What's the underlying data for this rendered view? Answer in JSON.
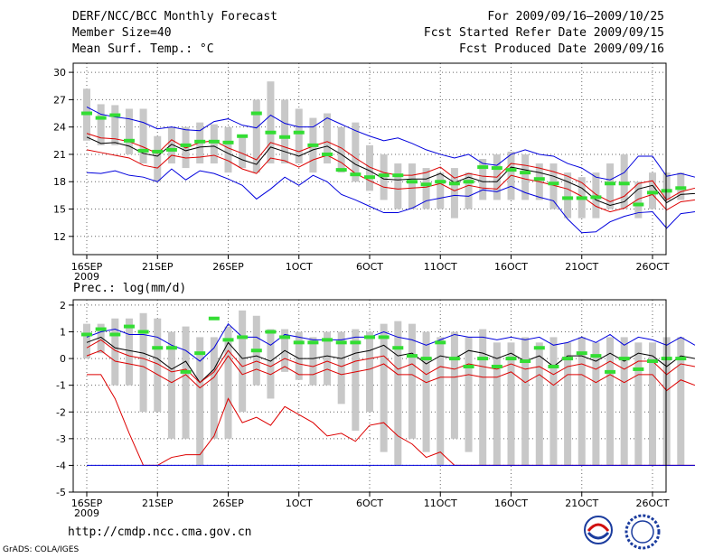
{
  "header": {
    "title": "DERF/NCC/BCC Monthly Forecast",
    "member_size": "Member Size=40",
    "variable": "Mean Surf. Temp.: °C",
    "period": "For 2009/09/16–2009/10/25",
    "started": "Fcst Started Refer Date 2009/09/15",
    "produced": "Fcst Produced Date 2009/09/16"
  },
  "footer": {
    "url": "http://cmdp.ncc.cma.gov.cn",
    "grads": "GrADS: COLA/IGES",
    "logo_left": "BCC",
    "logo_right": "NCC"
  },
  "colors": {
    "box": "#c8c8c8",
    "mean": "#000000",
    "spread": "#dd0000",
    "range": "#0000dd",
    "median": "#33dd33",
    "grid": "#666666"
  },
  "chart_data": [
    {
      "type": "line",
      "title": "Mean Surf. Temp.: °C",
      "days": 40,
      "xticks": [
        {
          "day": 0,
          "label": "16SEP",
          "sub": "2009"
        },
        {
          "day": 5,
          "label": "21SEP"
        },
        {
          "day": 10,
          "label": "26SEP"
        },
        {
          "day": 15,
          "label": "1OCT"
        },
        {
          "day": 20,
          "label": "6OCT"
        },
        {
          "day": 25,
          "label": "11OCT"
        },
        {
          "day": 30,
          "label": "16OCT"
        },
        {
          "day": 35,
          "label": "21OCT"
        },
        {
          "day": 40,
          "label": "26OCT"
        }
      ],
      "ylim": [
        10,
        31
      ],
      "yticks": [
        12,
        15,
        18,
        21,
        24,
        27,
        30
      ],
      "boxes": [
        [
          22.5,
          28.2
        ],
        [
          22,
          26.5
        ],
        [
          22,
          26.4
        ],
        [
          21,
          26
        ],
        [
          20,
          26
        ],
        [
          18,
          23
        ],
        [
          20,
          24
        ],
        [
          19.5,
          24
        ],
        [
          20,
          24.5
        ],
        [
          20,
          24.3
        ],
        [
          19,
          24
        ],
        [
          19.5,
          23
        ],
        [
          19,
          27
        ],
        [
          20,
          29
        ],
        [
          20,
          27
        ],
        [
          20,
          26
        ],
        [
          19,
          25
        ],
        [
          20,
          25.5
        ],
        [
          19,
          24
        ],
        [
          18,
          24.5
        ],
        [
          17,
          22
        ],
        [
          16,
          21
        ],
        [
          15,
          20
        ],
        [
          15,
          20
        ],
        [
          15,
          19.5
        ],
        [
          15,
          19
        ],
        [
          14,
          19.5
        ],
        [
          15,
          19
        ],
        [
          16,
          20.5
        ],
        [
          16,
          21
        ],
        [
          16,
          21.3
        ],
        [
          16,
          21
        ],
        [
          16,
          20
        ],
        [
          15,
          20
        ],
        [
          14,
          19
        ],
        [
          14,
          18.5
        ],
        [
          14,
          19
        ],
        [
          15,
          20
        ],
        [
          15,
          21
        ],
        [
          14,
          18
        ],
        [
          15,
          19
        ],
        [
          16,
          19
        ],
        [
          16,
          19
        ]
      ],
      "series": [
        {
          "name": "max",
          "color": "range",
          "values": [
            26.2,
            25.4,
            25.1,
            24.9,
            24.5,
            23.8,
            24.0,
            23.7,
            23.6,
            24.6,
            24.9,
            24.2,
            23.9,
            25.3,
            24.4,
            24.0,
            24.0,
            25.0,
            24.3,
            23.6,
            23.0,
            22.5,
            22.8,
            22.2,
            21.5,
            21.0,
            20.6,
            21.0,
            20.0,
            19.8,
            21.0,
            21.5,
            21.0,
            20.8,
            20.0,
            19.5,
            18.5,
            18.2,
            19.0,
            20.8,
            20.8,
            18.6,
            18.9,
            18.5
          ]
        },
        {
          "name": "spread_upper",
          "color": "spread",
          "values": [
            23.3,
            22.8,
            22.7,
            22.4,
            21.8,
            21.1,
            22.6,
            21.7,
            22.3,
            22.5,
            21.7,
            21.1,
            20.4,
            22.3,
            21.8,
            21.3,
            21.9,
            22.4,
            21.7,
            20.6,
            19.6,
            19.0,
            18.7,
            18.7,
            19.0,
            19.6,
            18.4,
            18.9,
            18.6,
            18.5,
            20.0,
            19.8,
            19.5,
            19.1,
            18.6,
            17.9,
            16.6,
            15.8,
            16.4,
            17.8,
            18.1,
            16.0,
            16.9,
            17.3
          ]
        },
        {
          "name": "mean",
          "color": "mean",
          "values": [
            22.9,
            22.2,
            22.3,
            21.9,
            21.1,
            20.8,
            22.1,
            21.4,
            21.8,
            21.9,
            21.1,
            20.4,
            19.9,
            21.8,
            21.3,
            20.8,
            21.5,
            21.9,
            21.0,
            19.9,
            19.2,
            18.3,
            18.2,
            18.3,
            18.3,
            18.9,
            17.9,
            18.5,
            18.0,
            18.0,
            19.6,
            19.3,
            19.0,
            18.6,
            18.0,
            17.3,
            16.0,
            15.4,
            15.8,
            17.2,
            17.6,
            15.7,
            16.6,
            16.7
          ]
        },
        {
          "name": "spread_lower",
          "color": "spread",
          "values": [
            21.5,
            21.2,
            20.9,
            20.6,
            19.8,
            19.5,
            20.9,
            20.6,
            20.7,
            20.9,
            20.3,
            19.4,
            18.9,
            20.6,
            20.3,
            19.6,
            20.4,
            20.9,
            20.1,
            18.9,
            18.1,
            17.4,
            17.2,
            17.3,
            17.4,
            17.8,
            17.0,
            17.6,
            17.3,
            17.2,
            18.7,
            18.3,
            18.0,
            17.6,
            17.2,
            16.4,
            15.3,
            14.7,
            15.1,
            16.1,
            16.6,
            14.9,
            15.8,
            16.0
          ]
        },
        {
          "name": "min",
          "color": "range",
          "values": [
            19.0,
            18.9,
            19.2,
            18.7,
            18.5,
            18.0,
            19.4,
            18.2,
            19.2,
            18.9,
            18.3,
            17.6,
            16.1,
            17.2,
            18.5,
            17.6,
            18.7,
            18.0,
            16.6,
            16.0,
            15.3,
            14.6,
            14.6,
            15.1,
            15.9,
            16.2,
            16.5,
            16.4,
            17.1,
            16.9,
            17.5,
            16.8,
            16.3,
            15.9,
            13.9,
            12.4,
            12.5,
            13.6,
            14.2,
            14.6,
            14.7,
            12.9,
            14.5,
            14.7
          ]
        }
      ],
      "medians": [
        25.5,
        25.0,
        25.3,
        22.5,
        21.4,
        21.3,
        21.5,
        22.0,
        22.4,
        22.4,
        22.3,
        23.0,
        25.5,
        23.4,
        22.9,
        23.4,
        22.0,
        21.0,
        19.3,
        18.8,
        18.5,
        18.7,
        18.7,
        18.0,
        17.7,
        18.0,
        17.8,
        18.0,
        19.6,
        19.5,
        19.3,
        19.0,
        18.3,
        17.8,
        16.2,
        16.2,
        16.3,
        17.8,
        17.8,
        15.5,
        16.8,
        17.0,
        17.3
      ]
    },
    {
      "type": "line",
      "title": "Prec.: log(mm/d)",
      "days": 40,
      "xticks": [
        {
          "day": 0,
          "label": "16SEP",
          "sub": "2009"
        },
        {
          "day": 5,
          "label": "21SEP"
        },
        {
          "day": 10,
          "label": "26SEP"
        },
        {
          "day": 15,
          "label": "1OCT"
        },
        {
          "day": 20,
          "label": "6OCT"
        },
        {
          "day": 25,
          "label": "11OCT"
        },
        {
          "day": 30,
          "label": "16OCT"
        },
        {
          "day": 35,
          "label": "21OCT"
        },
        {
          "day": 40,
          "label": "26OCT"
        }
      ],
      "ylim": [
        -5,
        2.2
      ],
      "yticks": [
        -5,
        -4,
        -3,
        -2,
        -1,
        0,
        1,
        2
      ],
      "boxes": [
        [
          0,
          1.3
        ],
        [
          0.2,
          1.3
        ],
        [
          -1,
          1.5
        ],
        [
          -1,
          1.5
        ],
        [
          -2,
          1.7
        ],
        [
          -2,
          1.5
        ],
        [
          -3,
          1
        ],
        [
          -3,
          1.2
        ],
        [
          -4,
          0.8
        ],
        [
          -3,
          0.8
        ],
        [
          -3,
          1.2
        ],
        [
          -2,
          1.8
        ],
        [
          -1,
          1.6
        ],
        [
          -1.5,
          1.1
        ],
        [
          -0.5,
          1.1
        ],
        [
          -0.8,
          1
        ],
        [
          -1,
          0.8
        ],
        [
          -1,
          1
        ],
        [
          -1.7,
          1
        ],
        [
          -2.7,
          1.1
        ],
        [
          -2,
          1
        ],
        [
          -3.5,
          1.3
        ],
        [
          -4,
          1.4
        ],
        [
          -3,
          1.3
        ],
        [
          -3.5,
          1
        ],
        [
          -4,
          0.8
        ],
        [
          -3,
          1
        ],
        [
          -3.5,
          0.8
        ],
        [
          -4,
          1.1
        ],
        [
          -4,
          0.6
        ],
        [
          -4,
          0.6
        ],
        [
          -4,
          0.8
        ],
        [
          -4,
          0.6
        ],
        [
          -4,
          0.8
        ],
        [
          -4,
          0.6
        ],
        [
          -4,
          0.8
        ],
        [
          -4,
          0.6
        ],
        [
          -4,
          0.8
        ],
        [
          -4,
          0.8
        ],
        [
          -4,
          0.6
        ],
        [
          -4,
          0.6
        ],
        [
          -4,
          0.8
        ],
        [
          -4,
          0.8
        ]
      ],
      "series": [
        {
          "name": "max",
          "color": "range",
          "values": [
            0.8,
            1.0,
            1.1,
            0.9,
            0.9,
            0.8,
            0.5,
            0.3,
            -0.1,
            0.4,
            1.3,
            0.8,
            0.8,
            0.5,
            0.9,
            0.8,
            0.7,
            0.7,
            0.7,
            0.8,
            0.8,
            1.0,
            0.8,
            0.7,
            0.5,
            0.7,
            0.9,
            0.8,
            0.8,
            0.7,
            0.8,
            0.7,
            0.8,
            0.5,
            0.6,
            0.8,
            0.6,
            0.9,
            0.5,
            0.8,
            0.7,
            0.5,
            0.8,
            0.5
          ]
        },
        {
          "name": "mean",
          "color": "mean",
          "values": [
            0.6,
            0.8,
            0.4,
            0.3,
            0.2,
            0.0,
            -0.4,
            -0.1,
            -0.9,
            -0.4,
            0.6,
            0.0,
            0.1,
            -0.1,
            0.3,
            0.0,
            0.0,
            0.1,
            0.0,
            0.2,
            0.3,
            0.5,
            0.1,
            0.2,
            -0.2,
            0.1,
            0.0,
            0.3,
            0.2,
            0.0,
            0.2,
            -0.1,
            0.1,
            -0.3,
            0.1,
            0.1,
            -0.1,
            0.2,
            -0.1,
            0.2,
            0.1,
            -0.3,
            0.1,
            0.0
          ]
        },
        {
          "name": "spread_upper",
          "color": "spread",
          "values": [
            0.4,
            0.7,
            0.3,
            0.1,
            0.0,
            -0.2,
            -0.5,
            -0.4,
            -0.9,
            -0.5,
            0.3,
            -0.3,
            -0.1,
            -0.3,
            0.0,
            -0.2,
            -0.3,
            -0.1,
            -0.3,
            -0.1,
            0.0,
            0.1,
            -0.4,
            -0.2,
            -0.6,
            -0.3,
            -0.4,
            -0.2,
            -0.3,
            -0.4,
            -0.2,
            -0.4,
            -0.3,
            -0.6,
            -0.3,
            -0.2,
            -0.4,
            -0.1,
            -0.4,
            -0.1,
            -0.1,
            -0.6,
            -0.2,
            -0.3
          ]
        },
        {
          "name": "spread_lower",
          "color": "spread",
          "values": [
            0.1,
            0.3,
            -0.1,
            -0.2,
            -0.3,
            -0.6,
            -0.9,
            -0.6,
            -1.1,
            -0.7,
            0.1,
            -0.6,
            -0.4,
            -0.6,
            -0.3,
            -0.6,
            -0.6,
            -0.4,
            -0.6,
            -0.5,
            -0.4,
            -0.2,
            -0.6,
            -0.6,
            -0.9,
            -0.7,
            -0.7,
            -0.6,
            -0.7,
            -0.7,
            -0.5,
            -0.9,
            -0.6,
            -1.0,
            -0.6,
            -0.6,
            -0.9,
            -0.6,
            -0.9,
            -0.6,
            -0.6,
            -1.2,
            -0.8,
            -1.0
          ]
        },
        {
          "name": "min",
          "color": "spread",
          "values": [
            -0.6,
            -0.6,
            -1.5,
            -2.8,
            -4.0,
            -4.0,
            -3.7,
            -3.6,
            -3.6,
            -2.9,
            -1.5,
            -2.4,
            -2.2,
            -2.5,
            -1.8,
            -2.1,
            -2.4,
            -2.9,
            -2.8,
            -3.1,
            -2.5,
            -2.4,
            -2.9,
            -3.2,
            -3.7,
            -3.5,
            -4.0,
            -4.0,
            -4.0,
            -4.0,
            -4.0,
            -4.0,
            -4.0,
            -4.0,
            -4.0,
            -4.0,
            -4.0,
            -4.0,
            -4.0,
            -4.0,
            -4.0,
            -4.0,
            -4.0,
            -4.0
          ]
        },
        {
          "name": "floor",
          "color": "range",
          "values": [
            -4.0,
            -4.0,
            -4.0,
            -4.0,
            -4.0,
            -4.0,
            -4.0,
            -4.0,
            -4.0,
            -4.0,
            -4.0,
            -4.0,
            -4.0,
            -4.0,
            -4.0,
            -4.0,
            -4.0,
            -4.0,
            -4.0,
            -4.0,
            -4.0,
            -4.0,
            -4.0,
            -4.0,
            -4.0,
            -4.0,
            -4.0,
            -4.0,
            -4.0,
            -4.0,
            -4.0,
            -4.0,
            -4.0,
            -4.0,
            -4.0,
            -4.0,
            -4.0,
            -4.0,
            -4.0,
            -4.0,
            -4.0,
            -4.0,
            -4.0,
            -4.0
          ]
        }
      ],
      "medians": [
        0.9,
        1.1,
        0.9,
        1.2,
        1.0,
        0.4,
        0.4,
        -0.5,
        0.2,
        1.5,
        0.7,
        0.8,
        0.3,
        1.0,
        0.8,
        0.6,
        0.6,
        0.7,
        0.6,
        0.6,
        0.8,
        0.8,
        0.4,
        0.1,
        0.0,
        0.6,
        0.0,
        -0.3,
        0.0,
        -0.3,
        0.0,
        -0.1,
        0.4,
        -0.3,
        0.0,
        0.2,
        0.1,
        -0.5,
        0.0,
        -0.4,
        -0.1,
        0.0,
        0.0
      ]
    }
  ]
}
